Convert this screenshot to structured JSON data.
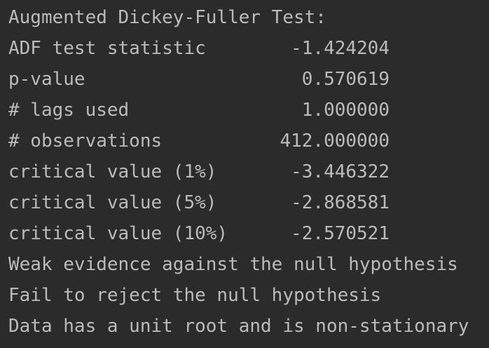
{
  "output": {
    "header": "Augmented Dickey-Fuller Test:",
    "stats": [
      {
        "label": "ADF test statistic",
        "value": "-1.424204"
      },
      {
        "label": "p-value",
        "value": "0.570619"
      },
      {
        "label": "# lags used",
        "value": "1.000000"
      },
      {
        "label": "# observations",
        "value": "412.000000"
      },
      {
        "label": "critical value (1%)",
        "value": "-3.446322"
      },
      {
        "label": "critical value (5%)",
        "value": "-2.868581"
      },
      {
        "label": "critical value (10%)",
        "value": "-2.570521"
      }
    ],
    "conclusions": [
      "Weak evidence against the null hypothesis",
      "Fail to reject the null hypothesis",
      "Data has a unit root and is non-stationary"
    ]
  },
  "colors": {
    "background": "#2b2b2b",
    "text": "#bbbbbb"
  }
}
